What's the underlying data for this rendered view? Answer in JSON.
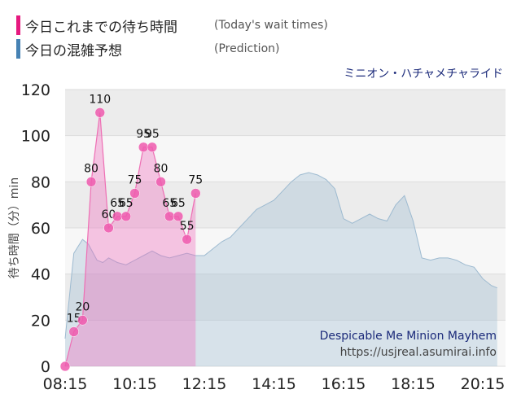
{
  "legend": {
    "today_label": "今日これまでの待ち時間",
    "today_sub": "(Today's wait times)",
    "today_color": "#e6197f",
    "prediction_label": "今日の混雑予想",
    "prediction_sub": "(Prediction)",
    "prediction_color": "#4682b4"
  },
  "attraction_title_jp": "ミニオン・ハチャメチャライド",
  "attraction_title_en": "Despicable Me Minion Mayhem",
  "source_url": "https://usjreal.asumirai.info",
  "chart_data": {
    "type": "area",
    "ylabel": "待ち時間（分）min",
    "ylim": [
      0,
      120
    ],
    "yticks": [
      0,
      20,
      40,
      60,
      80,
      100,
      120
    ],
    "x_tick_labels": [
      "08:15",
      "10:15",
      "12:15",
      "14:15",
      "16:15",
      "18:15",
      "20:15"
    ],
    "x_tick_minutes": [
      495,
      615,
      735,
      855,
      975,
      1095,
      1215
    ],
    "xlim_minutes": [
      495,
      1250
    ],
    "grid": true,
    "series": [
      {
        "name": "今日の混雑予想",
        "kind": "prediction",
        "color": "#9dbad0",
        "points": [
          [
            495,
            12
          ],
          [
            510,
            49
          ],
          [
            525,
            55
          ],
          [
            535,
            53
          ],
          [
            550,
            46
          ],
          [
            560,
            45
          ],
          [
            570,
            47
          ],
          [
            585,
            45
          ],
          [
            600,
            44
          ],
          [
            615,
            46
          ],
          [
            630,
            48
          ],
          [
            645,
            50
          ],
          [
            660,
            48
          ],
          [
            675,
            47
          ],
          [
            690,
            48
          ],
          [
            705,
            49
          ],
          [
            720,
            48
          ],
          [
            735,
            48
          ],
          [
            750,
            51
          ],
          [
            765,
            54
          ],
          [
            780,
            56
          ],
          [
            795,
            60
          ],
          [
            810,
            64
          ],
          [
            825,
            68
          ],
          [
            840,
            70
          ],
          [
            855,
            72
          ],
          [
            870,
            76
          ],
          [
            885,
            80
          ],
          [
            900,
            83
          ],
          [
            915,
            84
          ],
          [
            930,
            83
          ],
          [
            945,
            81
          ],
          [
            960,
            77
          ],
          [
            975,
            64
          ],
          [
            990,
            62
          ],
          [
            1005,
            64
          ],
          [
            1020,
            66
          ],
          [
            1035,
            64
          ],
          [
            1050,
            63
          ],
          [
            1065,
            70
          ],
          [
            1080,
            74
          ],
          [
            1095,
            63
          ],
          [
            1110,
            47
          ],
          [
            1125,
            46
          ],
          [
            1140,
            47
          ],
          [
            1155,
            47
          ],
          [
            1170,
            46
          ],
          [
            1185,
            44
          ],
          [
            1200,
            43
          ],
          [
            1215,
            38
          ],
          [
            1230,
            35
          ],
          [
            1240,
            34
          ]
        ]
      },
      {
        "name": "今日これまでの待ち時間",
        "kind": "today",
        "color": "#e6197f",
        "points": [
          [
            495,
            0
          ],
          [
            510,
            15
          ],
          [
            525,
            20
          ],
          [
            540,
            80
          ],
          [
            555,
            110
          ],
          [
            570,
            60
          ],
          [
            585,
            65
          ],
          [
            600,
            65
          ],
          [
            615,
            75
          ],
          [
            630,
            95
          ],
          [
            645,
            95
          ],
          [
            660,
            80
          ],
          [
            675,
            65
          ],
          [
            690,
            65
          ],
          [
            705,
            55
          ],
          [
            720,
            75
          ]
        ],
        "labels": [
          "0",
          "15",
          "20",
          "80",
          "110",
          "60",
          "65",
          "65",
          "75",
          "95",
          "95",
          "80",
          "65",
          "65",
          "55",
          "75"
        ]
      }
    ]
  }
}
